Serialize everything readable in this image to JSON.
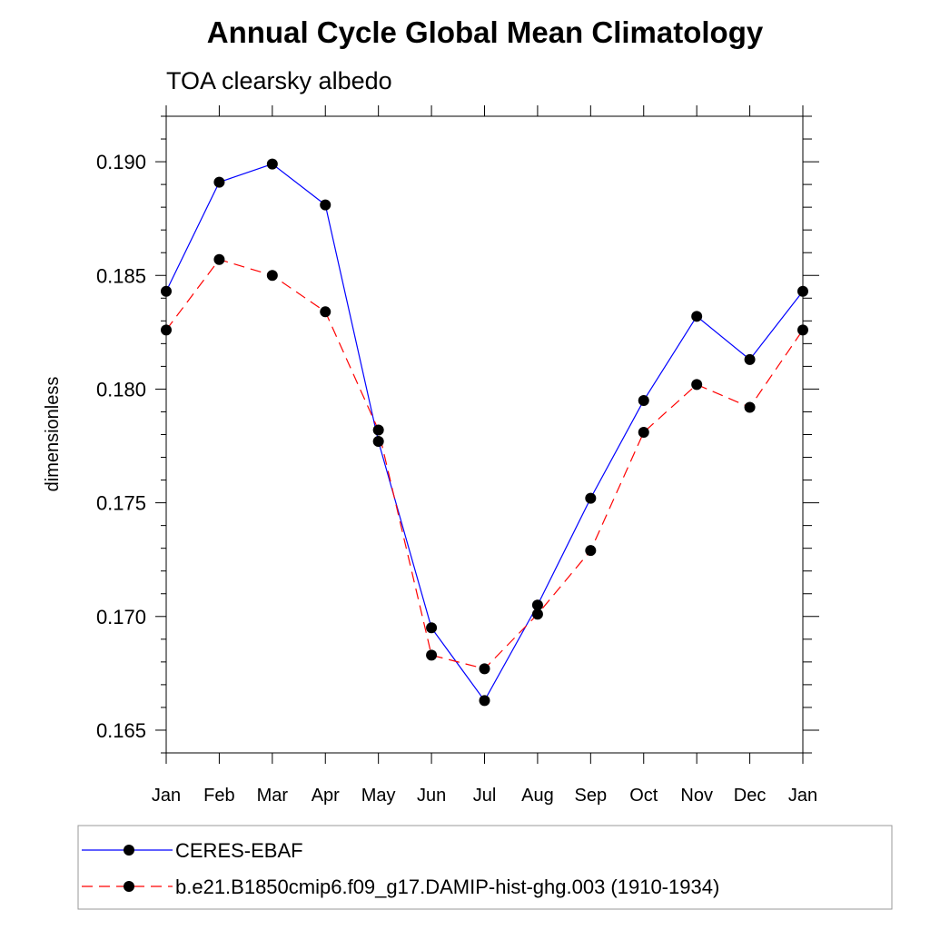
{
  "chart_data": {
    "type": "line",
    "title": "Annual Cycle Global Mean Climatology",
    "subtitle": "TOA clearsky albedo",
    "xlabel": "",
    "ylabel": "dimensionless",
    "categories": [
      "Jan",
      "Feb",
      "Mar",
      "Apr",
      "May",
      "Jun",
      "Jul",
      "Aug",
      "Sep",
      "Oct",
      "Nov",
      "Dec",
      "Jan"
    ],
    "ylim": [
      0.164,
      0.192
    ],
    "yticks": [
      0.165,
      0.17,
      0.175,
      0.18,
      0.185,
      0.19
    ],
    "ytick_labels": [
      "0.165",
      "0.170",
      "0.175",
      "0.180",
      "0.185",
      "0.190"
    ],
    "grid": false,
    "legend_position": "bottom",
    "series": [
      {
        "name": "CERES-EBAF",
        "color": "#0000ff",
        "style": "solid",
        "values": [
          0.1843,
          0.1891,
          0.1899,
          0.1881,
          0.1777,
          0.1695,
          0.1663,
          0.1705,
          0.1752,
          0.1795,
          0.1832,
          0.1813,
          0.1843
        ]
      },
      {
        "name": "b.e21.B1850cmip6.f09_g17.DAMIP-hist-ghg.003 (1910-1934)",
        "color": "#ff0000",
        "style": "dashed",
        "values": [
          0.1826,
          0.1857,
          0.185,
          0.1834,
          0.1782,
          0.1683,
          0.1677,
          0.1701,
          0.1729,
          0.1781,
          0.1802,
          0.1792,
          0.1826
        ]
      }
    ]
  }
}
